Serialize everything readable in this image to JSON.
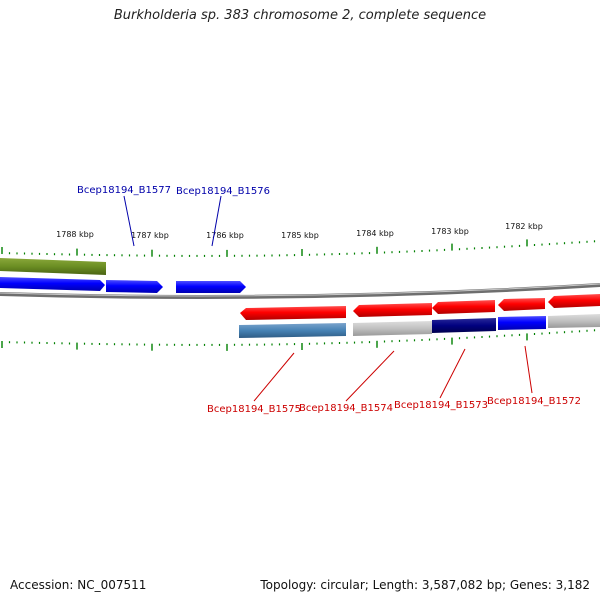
{
  "title": "Burkholderia sp. 383 chromosome 2, complete sequence",
  "footer": {
    "accession": "Accession: NC_007511",
    "topology": "Topology: circular; Length: 3,587,082 bp; Genes: 3,182"
  },
  "colors": {
    "forward_label": "#0000aa",
    "reverse_label": "#cc0000",
    "backbone": "#888888",
    "tick": "#008000"
  },
  "scale": {
    "labels": [
      "1788 kbp",
      "1787 kbp",
      "1786 kbp",
      "1785 kbp",
      "1784 kbp",
      "1783 kbp",
      "1782 kbp"
    ]
  },
  "genes": {
    "forward_labels": [
      "Bcep18194_B1577",
      "Bcep18194_B1576"
    ],
    "reverse_labels": [
      "Bcep18194_B1575",
      "Bcep18194_B1574",
      "Bcep18194_B1573",
      "Bcep18194_B1572"
    ]
  }
}
